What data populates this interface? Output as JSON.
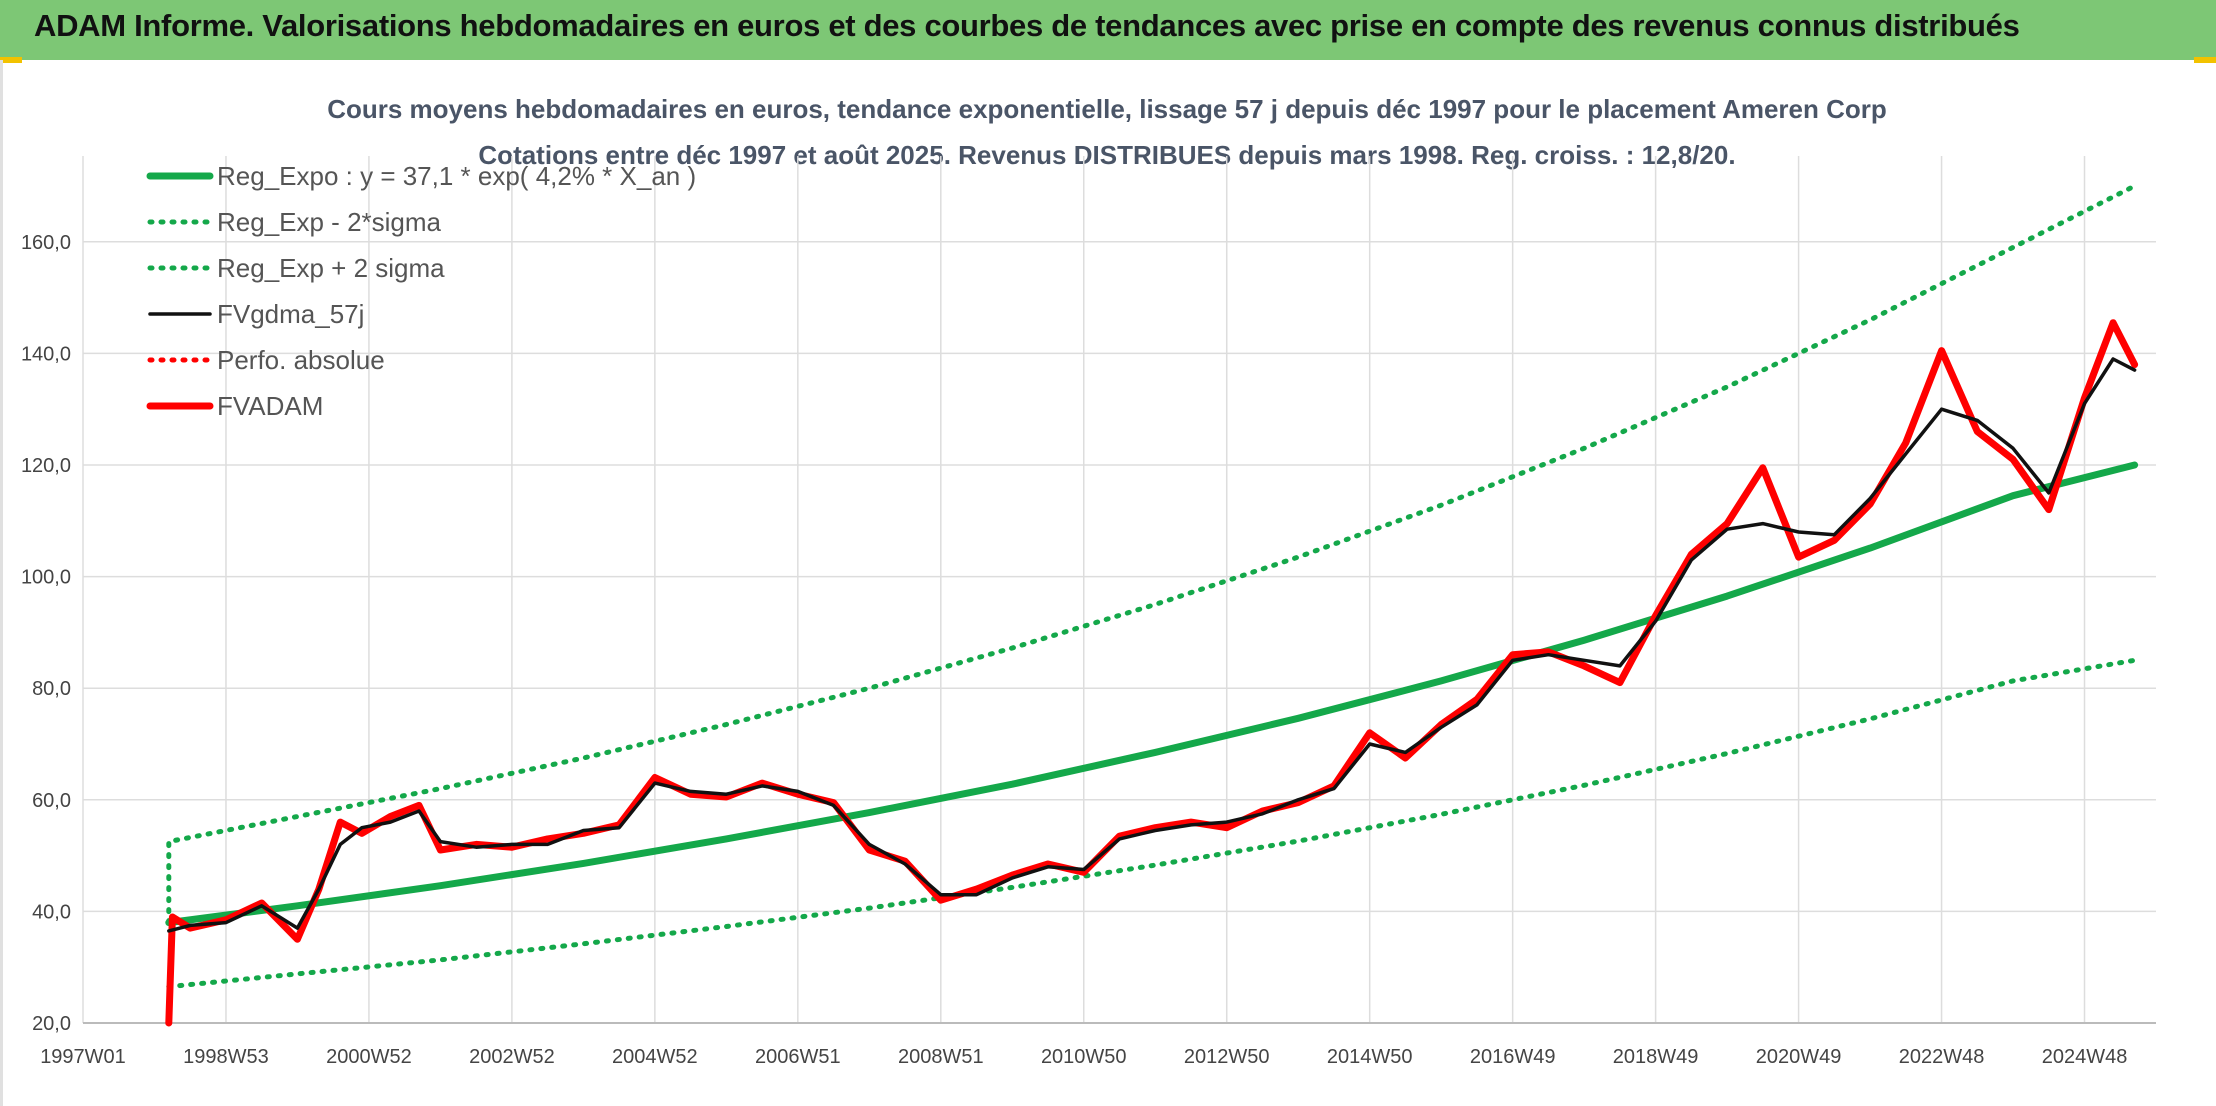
{
  "header": {
    "title": "ADAM Informe. Valorisations hebdomadaires en euros et des courbes de tendances avec prise en compte des revenus connus distribués"
  },
  "colors": {
    "banner": "#7dc775",
    "trend": "#14a84a",
    "band": "#14a84a",
    "smooth": "#111111",
    "price": "#ff0000",
    "perfo": "#ff0000",
    "grid": "#dddddd"
  },
  "chart_data": {
    "type": "line",
    "title": "Cours moyens hebdomadaires en euros, tendance exponentielle, lissage 57 j depuis déc 1997 pour le placement Ameren Corp",
    "subtitle": "Cotations entre déc 1997 et août 2025. Revenus DISTRIBUES depuis mars 1998. Reg. croiss. : 12,8/20.",
    "xlabel": "",
    "ylabel": "",
    "ylim": [
      20,
      170
    ],
    "y_ticks": [
      "20,0",
      "40,0",
      "60,0",
      "80,0",
      "100,0",
      "120,0",
      "140,0",
      "160,0"
    ],
    "x_ticks": [
      "1997W01",
      "1998W53",
      "2000W52",
      "2002W52",
      "2004W52",
      "2006W51",
      "2008W51",
      "2010W50",
      "2012W50",
      "2014W50",
      "2016W49",
      "2018W49",
      "2020W49",
      "2022W48",
      "2024W48"
    ],
    "x_range": [
      1997.0,
      2026.0
    ],
    "grid": true,
    "legend_position": "top-left",
    "legend": [
      {
        "label": "Reg_Expo : y = 37,1 * exp( 4,2% *  X_an )",
        "style": "solid-thick",
        "color": "#14a84a"
      },
      {
        "label": "Reg_Exp - 2*sigma",
        "style": "dotted",
        "color": "#14a84a"
      },
      {
        "label": "Reg_Exp + 2 sigma",
        "style": "dotted",
        "color": "#14a84a"
      },
      {
        "label": "FVgdma_57j",
        "style": "solid",
        "color": "#111111"
      },
      {
        "label": "Perfo. absolue",
        "style": "dotted",
        "color": "#ff0000"
      },
      {
        "label": "FVADAM",
        "style": "solid-thick",
        "color": "#ff0000"
      }
    ],
    "series": [
      {
        "name": "Reg_Expo : y = 37,1 * exp( 4,2% *  X_an )",
        "x": [
          1998.2,
          2000,
          2002,
          2004,
          2006,
          2008,
          2010,
          2012,
          2014,
          2016,
          2018,
          2020,
          2022,
          2024,
          2025.7
        ],
        "values": [
          38.0,
          41.0,
          44.6,
          48.6,
          53.0,
          57.7,
          62.8,
          68.5,
          74.6,
          81.3,
          88.6,
          96.5,
          105.1,
          114.5,
          120.0
        ]
      },
      {
        "name": "Reg_Exp - 2*sigma",
        "x": [
          1998.2,
          2000,
          2002,
          2004,
          2006,
          2008,
          2010,
          2012,
          2014,
          2016,
          2018,
          2020,
          2022,
          2024,
          2025.7
        ],
        "values": [
          26.5,
          28.8,
          31.3,
          34.2,
          37.3,
          40.6,
          44.3,
          48.3,
          52.6,
          57.4,
          62.6,
          68.3,
          74.5,
          81.3,
          85.0
        ]
      },
      {
        "name": "Reg_Exp + 2 sigma",
        "x": [
          1998.2,
          2000,
          2002,
          2004,
          2006,
          2008,
          2010,
          2012,
          2014,
          2016,
          2018,
          2020,
          2022,
          2024,
          2025.7
        ],
        "values": [
          52.5,
          57.0,
          62.0,
          67.5,
          73.5,
          80.0,
          87.2,
          95.0,
          103.5,
          112.8,
          123.0,
          134.0,
          146.0,
          159.0,
          170.0
        ]
      },
      {
        "name": "FVgdma_57j",
        "x": [
          1998.2,
          1998.5,
          1999.0,
          1999.5,
          2000.0,
          2000.3,
          2000.6,
          2000.9,
          2001.3,
          2001.7,
          2002.0,
          2002.5,
          2003.0,
          2003.5,
          2004.0,
          2004.5,
          2005.0,
          2005.5,
          2006.0,
          2006.5,
          2007.0,
          2007.5,
          2008.0,
          2008.5,
          2009.0,
          2009.5,
          2010.0,
          2010.5,
          2011.0,
          2011.5,
          2012.0,
          2012.5,
          2013.0,
          2013.5,
          2014.0,
          2014.5,
          2015.0,
          2015.5,
          2016.0,
          2016.5,
          2017.0,
          2017.5,
          2018.0,
          2018.5,
          2019.0,
          2019.5,
          2020.0,
          2020.5,
          2021.0,
          2021.5,
          2022.0,
          2022.5,
          2023.0,
          2023.5,
          2024.0,
          2024.5,
          2025.0,
          2025.4,
          2025.7
        ],
        "values": [
          36.5,
          37.5,
          38.0,
          41.0,
          37.0,
          44.0,
          52.0,
          55.0,
          56.0,
          58.0,
          52.5,
          51.5,
          52.0,
          52.0,
          54.5,
          55.0,
          63.0,
          61.5,
          61.0,
          62.5,
          61.5,
          59.0,
          52.0,
          48.5,
          43.0,
          43.0,
          46.0,
          48.0,
          47.5,
          53.0,
          54.5,
          55.5,
          56.0,
          57.5,
          60.0,
          62.0,
          70.0,
          68.5,
          73.0,
          77.0,
          85.0,
          86.0,
          85.0,
          84.0,
          92.0,
          103.0,
          108.5,
          109.5,
          108.0,
          107.5,
          114.0,
          122.0,
          130.0,
          128.0,
          123.0,
          115.0,
          131.0,
          139.0,
          137.0
        ]
      },
      {
        "name": "FVADAM",
        "x": [
          1998.2,
          1998.25,
          1998.5,
          1999.0,
          1999.5,
          2000.0,
          2000.3,
          2000.6,
          2000.9,
          2001.3,
          2001.7,
          2002.0,
          2002.5,
          2003.0,
          2003.5,
          2004.0,
          2004.5,
          2005.0,
          2005.5,
          2006.0,
          2006.5,
          2007.0,
          2007.5,
          2008.0,
          2008.5,
          2009.0,
          2009.5,
          2010.0,
          2010.5,
          2011.0,
          2011.5,
          2012.0,
          2012.5,
          2013.0,
          2013.5,
          2014.0,
          2014.5,
          2015.0,
          2015.5,
          2016.0,
          2016.5,
          2017.0,
          2017.5,
          2018.0,
          2018.5,
          2019.0,
          2019.5,
          2020.0,
          2020.5,
          2021.0,
          2021.5,
          2022.0,
          2022.5,
          2023.0,
          2023.5,
          2024.0,
          2024.5,
          2025.0,
          2025.4,
          2025.7
        ],
        "values": [
          20.0,
          39.0,
          37.0,
          38.5,
          41.5,
          35.0,
          44.0,
          56.0,
          54.0,
          57.0,
          59.0,
          51.0,
          52.0,
          51.5,
          53.0,
          54.0,
          55.5,
          64.0,
          61.0,
          60.5,
          63.0,
          61.0,
          59.5,
          51.0,
          49.0,
          42.0,
          44.0,
          46.5,
          48.5,
          47.0,
          53.5,
          55.0,
          56.0,
          55.0,
          58.0,
          59.5,
          62.5,
          72.0,
          67.5,
          73.5,
          78.0,
          86.0,
          86.5,
          84.0,
          81.0,
          93.0,
          104.0,
          109.5,
          119.5,
          103.5,
          106.5,
          113.0,
          124.0,
          140.5,
          126.0,
          121.0,
          112.0,
          132.0,
          145.5,
          138.0
        ]
      }
    ]
  }
}
